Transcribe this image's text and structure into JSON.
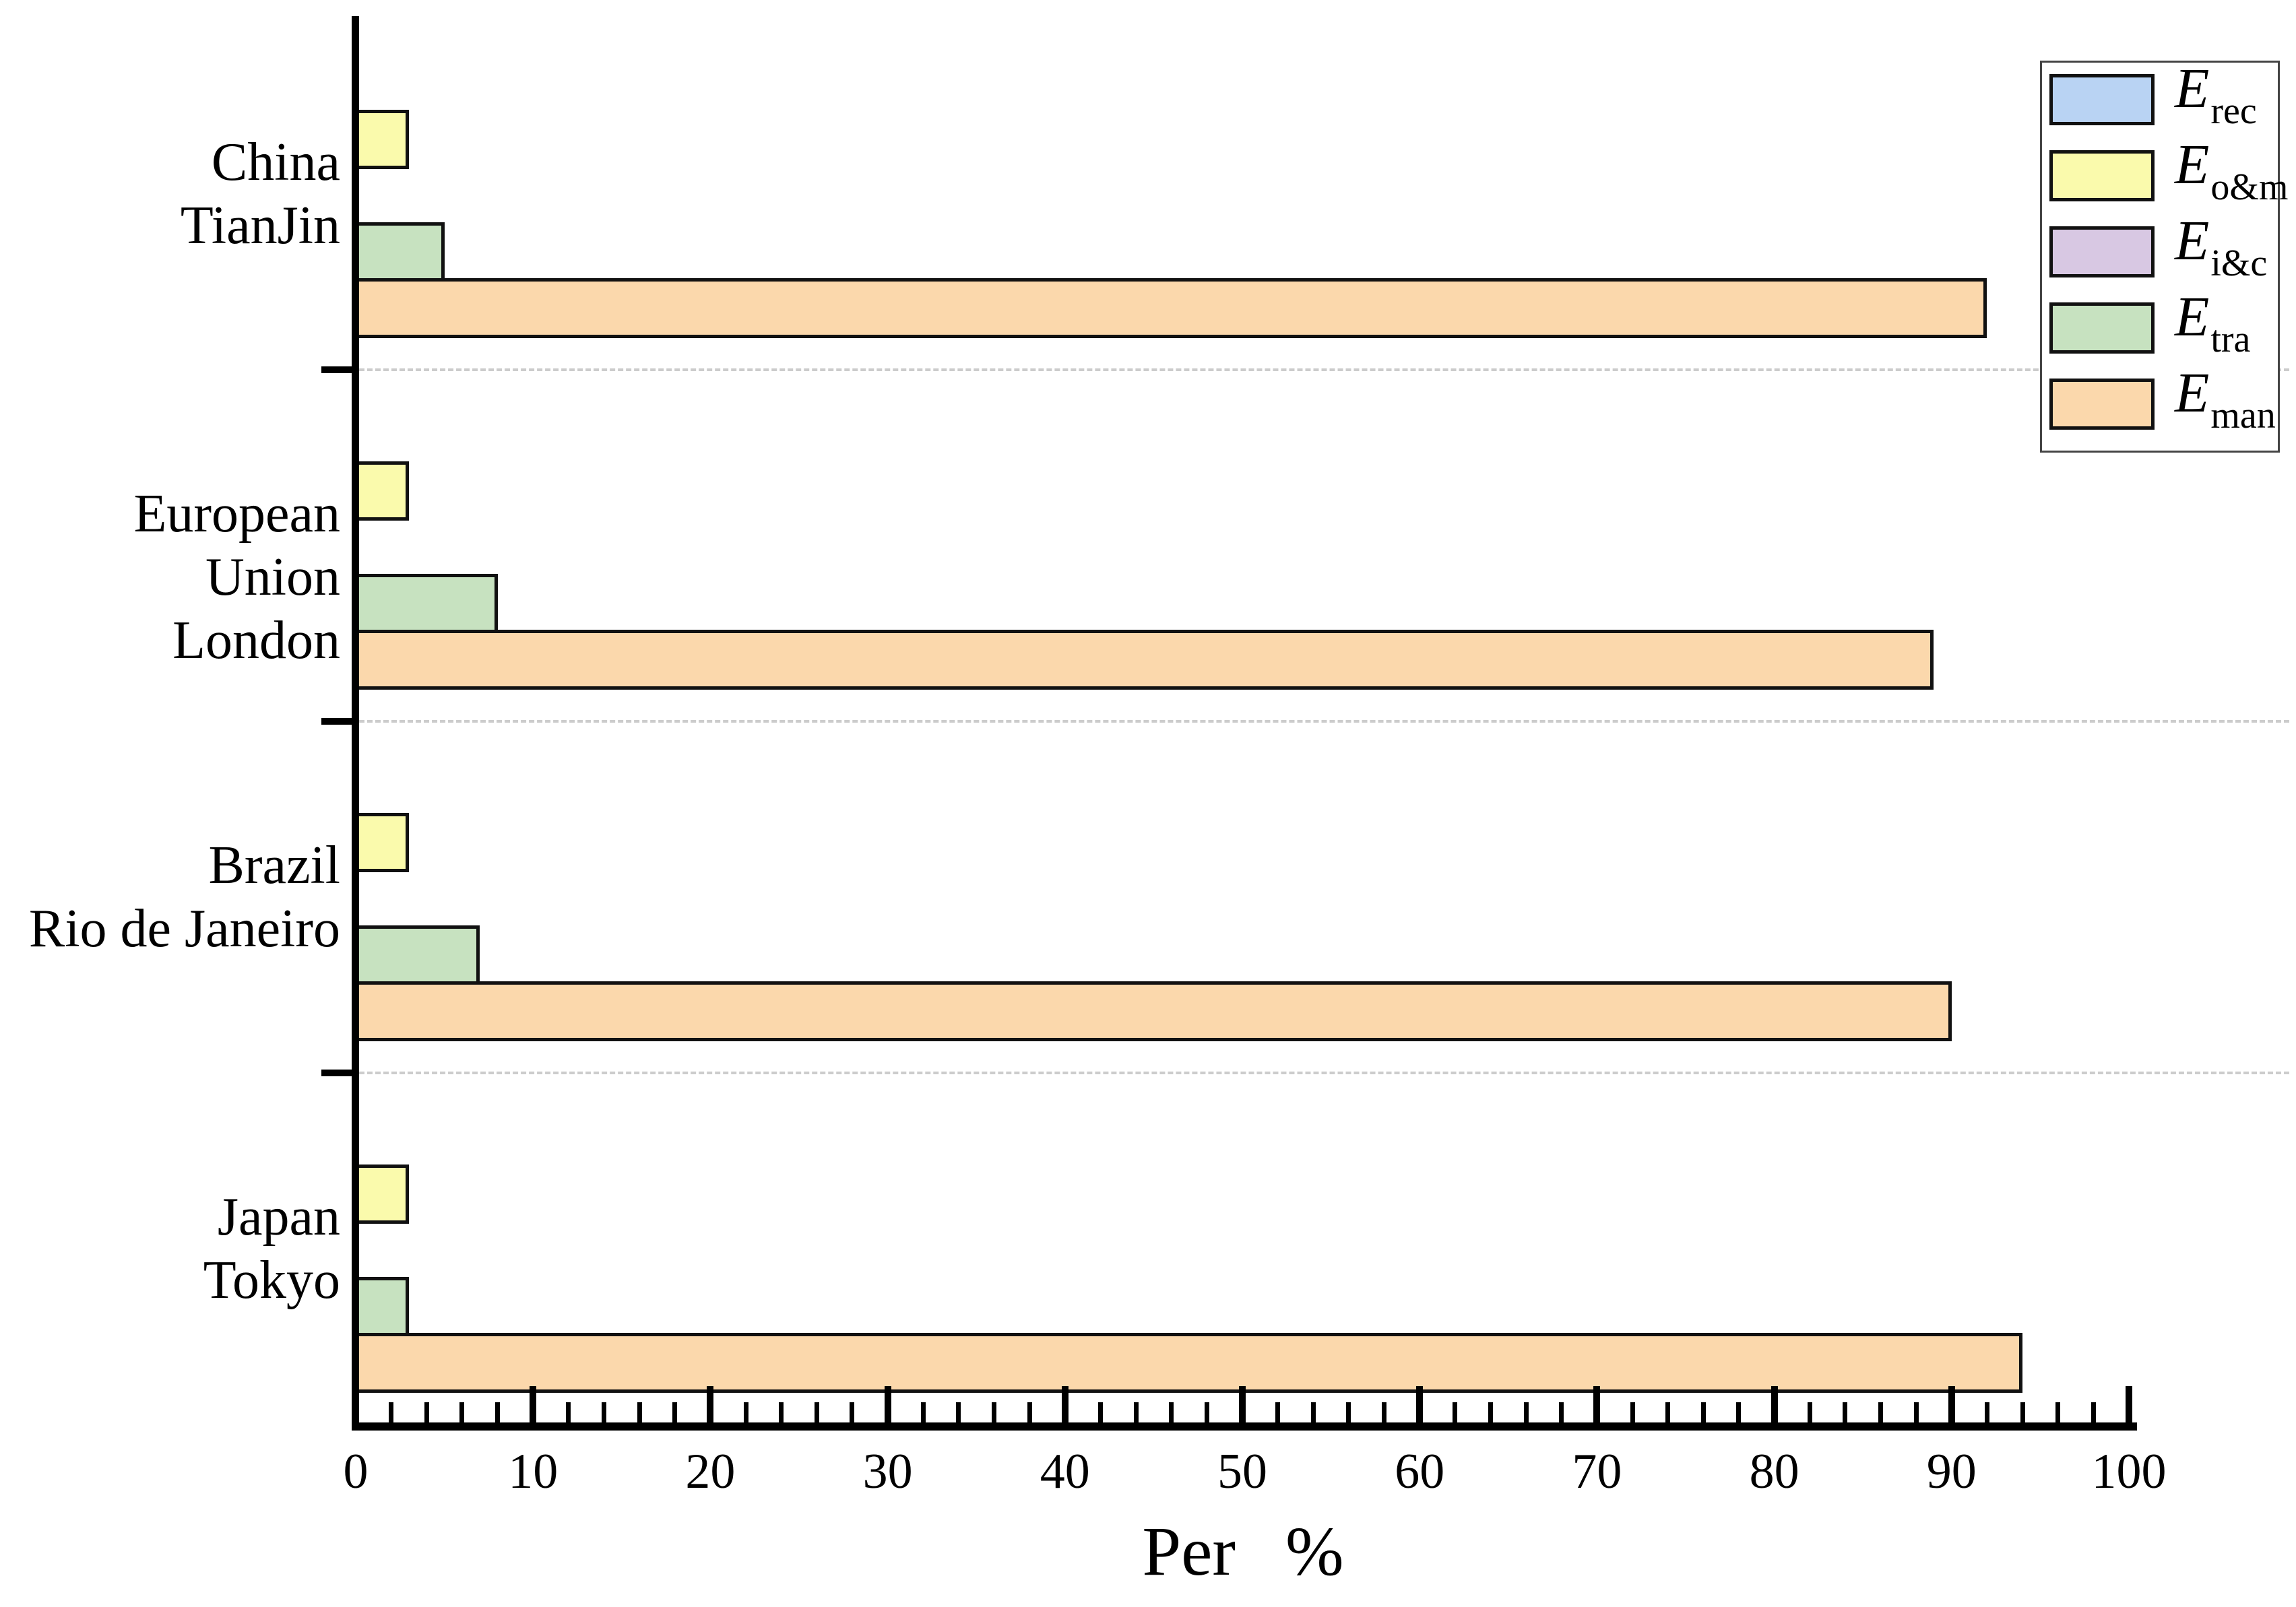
{
  "chart_data": {
    "type": "bar",
    "orientation": "horizontal",
    "title": "",
    "xlabel": "Per %",
    "xlim": [
      0,
      100
    ],
    "xticks": [
      "0",
      "10",
      "20",
      "30",
      "40",
      "50",
      "60",
      "70",
      "80",
      "90",
      "100"
    ],
    "xtick_step": 10,
    "minor_tick_step": 2,
    "grid": "dashed-group-separators",
    "legend_position": "upper-right",
    "categories": [
      {
        "lines": [
          "China",
          "TianJin"
        ]
      },
      {
        "lines": [
          "European Union",
          "London"
        ]
      },
      {
        "lines": [
          "Brazil",
          "Rio de Janeiro"
        ]
      },
      {
        "lines": [
          "Japan",
          "Tokyo"
        ]
      }
    ],
    "series": [
      {
        "name": "E_rec",
        "symbol": "E",
        "subscript": "rec",
        "color": "#B9D3F3",
        "values": [
          0,
          0,
          0,
          0
        ]
      },
      {
        "name": "E_o&m",
        "symbol": "E",
        "subscript": "o&m",
        "color": "#FAFAAC",
        "values": [
          3,
          3,
          3,
          3
        ]
      },
      {
        "name": "E_i&c",
        "symbol": "E",
        "subscript": "i&c",
        "color": "#D8C8E3",
        "values": [
          0,
          0,
          0,
          0
        ]
      },
      {
        "name": "E_tra",
        "symbol": "E",
        "subscript": "tra",
        "color": "#C7E2C0",
        "values": [
          5,
          8,
          7,
          3
        ]
      },
      {
        "name": "E_man",
        "symbol": "E",
        "subscript": "man",
        "color": "#FBD8AC",
        "values": [
          92,
          89,
          90,
          94
        ]
      }
    ],
    "bar_edge_color": "#111111",
    "axis_color": "#000000",
    "separator_color": "#cccccc"
  }
}
